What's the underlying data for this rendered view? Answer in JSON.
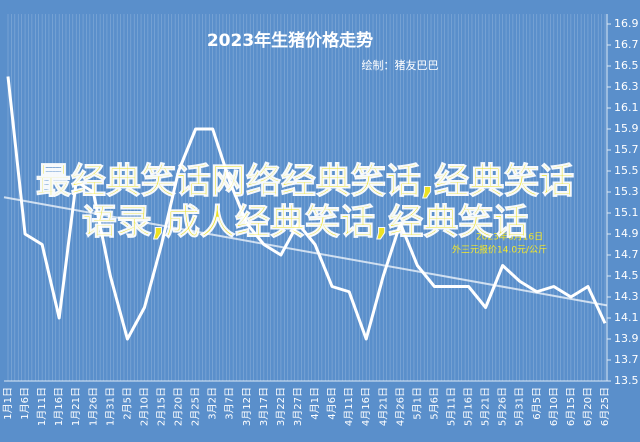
{
  "chart_data": {
    "type": "line",
    "title": "2023年生猪价格走势",
    "subtitle": "绘制：猪友巴巴",
    "categories": [
      "1月1日",
      "1月6日",
      "1月11日",
      "1月16日",
      "1月21日",
      "1月26日",
      "1月31日",
      "2月5日",
      "2月10日",
      "2月15日",
      "2月20日",
      "2月25日",
      "3月2日",
      "3月7日",
      "3月12日",
      "3月17日",
      "3月22日",
      "3月27日",
      "4月1日",
      "4月6日",
      "4月11日",
      "4月16日",
      "4月21日",
      "4月26日",
      "5月1日",
      "5月6日",
      "5月11日",
      "5月16日",
      "5月21日",
      "5月26日",
      "5月31日",
      "6月5日",
      "6月10日",
      "6月15日",
      "6月20日",
      "6月25日"
    ],
    "values": [
      16.4,
      14.9,
      14.8,
      14.1,
      15.4,
      15.3,
      14.5,
      13.9,
      14.2,
      14.8,
      15.5,
      15.9,
      15.9,
      15.4,
      15.0,
      14.8,
      14.7,
      15.0,
      14.8,
      14.4,
      14.35,
      13.9,
      14.5,
      15.0,
      14.6,
      14.4,
      14.4,
      14.4,
      14.2,
      14.6,
      14.45,
      14.35,
      14.4,
      14.3,
      14.4,
      14.05
    ],
    "color": "#ffffff",
    "trendline": {
      "start": 15.25,
      "end": 14.22
    },
    "ylim": [
      13.5,
      16.9
    ],
    "yticks": [
      13.5,
      13.7,
      13.9,
      14.1,
      14.3,
      14.5,
      14.7,
      14.9,
      15.1,
      15.3,
      15.5,
      15.7,
      15.9,
      16.1,
      16.3,
      16.5,
      16.7,
      16.9
    ],
    "grid": true,
    "annotation": [
      "2023年6月16日",
      "外三元报价14.0元/公斤"
    ],
    "watermark": "最经典笑话网络经典笑话,经典笑话语录,成人经典笑话,经典笑话"
  }
}
